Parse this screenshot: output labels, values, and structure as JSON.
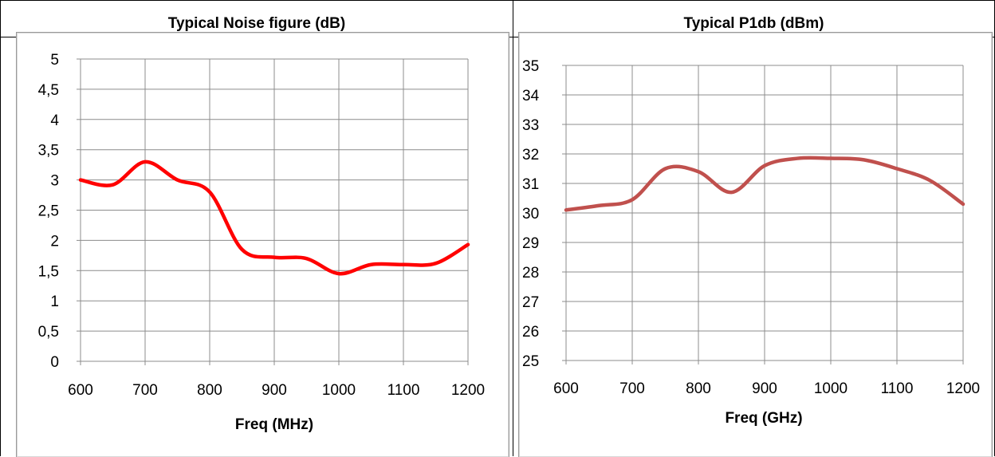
{
  "chart_data": [
    {
      "type": "line",
      "title": "Typical Noise figure (dB)",
      "xlabel": "Freq (MHz)",
      "ylabel": "",
      "xlim": [
        600,
        1200
      ],
      "ylim": [
        0,
        5
      ],
      "x_ticks": [
        600,
        700,
        800,
        900,
        1000,
        1100,
        1200
      ],
      "y_ticks": [
        0,
        0.5,
        1,
        1.5,
        2,
        2.5,
        3,
        3.5,
        4,
        4.5,
        5
      ],
      "y_tick_labels": [
        "0",
        "0,5",
        "1",
        "1,5",
        "2",
        "2,5",
        "3",
        "3,5",
        "4",
        "4,5",
        "5"
      ],
      "x_tick_labels": [
        "600",
        "700",
        "800",
        "900",
        "1000",
        "1100",
        "1200"
      ],
      "grid": true,
      "legend": "none",
      "series": [
        {
          "color": "#ff0000",
          "x": [
            600,
            650,
            700,
            750,
            800,
            850,
            900,
            950,
            1000,
            1050,
            1100,
            1150,
            1200
          ],
          "y": [
            3.0,
            2.92,
            3.3,
            3.0,
            2.8,
            1.85,
            1.72,
            1.7,
            1.45,
            1.6,
            1.6,
            1.62,
            1.93
          ]
        }
      ]
    },
    {
      "type": "line",
      "title": "Typical P1db (dBm)",
      "xlabel": "Freq (GHz)",
      "ylabel": "",
      "xlim": [
        600,
        1200
      ],
      "ylim": [
        25,
        35
      ],
      "x_ticks": [
        600,
        700,
        800,
        900,
        1000,
        1100,
        1200
      ],
      "y_ticks": [
        25,
        26,
        27,
        28,
        29,
        30,
        31,
        32,
        33,
        34,
        35
      ],
      "y_tick_labels": [
        "25",
        "26",
        "27",
        "28",
        "29",
        "30",
        "31",
        "32",
        "33",
        "34",
        "35"
      ],
      "x_tick_labels": [
        "600",
        "700",
        "800",
        "900",
        "1000",
        "1100",
        "1200"
      ],
      "grid": true,
      "legend": "none",
      "series": [
        {
          "color": "#c0504d",
          "x": [
            600,
            650,
            700,
            750,
            800,
            850,
            900,
            950,
            1000,
            1050,
            1100,
            1150,
            1200
          ],
          "y": [
            30.1,
            30.25,
            30.45,
            31.5,
            31.4,
            30.7,
            31.6,
            31.85,
            31.85,
            31.8,
            31.5,
            31.1,
            30.3
          ]
        }
      ]
    }
  ]
}
